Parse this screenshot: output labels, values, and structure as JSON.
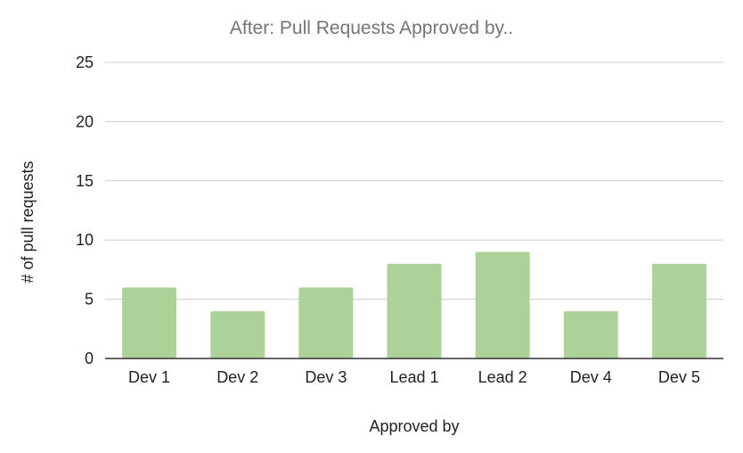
{
  "chart_data": {
    "type": "bar",
    "title": "After: Pull Requests Approved by..",
    "xlabel": "Approved by",
    "ylabel": "# of pull requests",
    "categories": [
      "Dev 1",
      "Dev 2",
      "Dev 3",
      "Lead 1",
      "Lead 2",
      "Dev 4",
      "Dev 5"
    ],
    "values": [
      6,
      4,
      6,
      8,
      9,
      4,
      8
    ],
    "ylim": [
      0,
      25
    ],
    "yticks": [
      "0",
      "5",
      "10",
      "15",
      "20",
      "25"
    ],
    "grid": true,
    "legend": "none",
    "bar_color": "#acd29a"
  }
}
